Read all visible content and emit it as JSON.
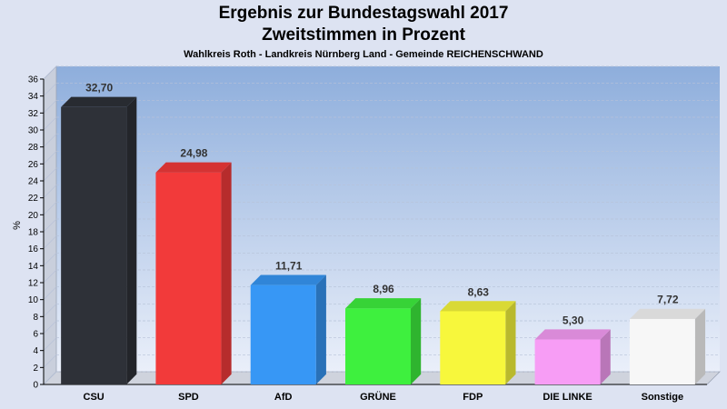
{
  "header": {
    "title": "Ergebnis zur Bundestagswahl 2017",
    "subtitle": "Zweitstimmen in Prozent",
    "caption": "Wahlkreis Roth - Landkreis Nürnberg Land - Gemeinde REICHENSCHWAND"
  },
  "chart_data": {
    "type": "bar",
    "title": "Ergebnis zur Bundestagswahl 2017",
    "subtitle": "Zweitstimmen in Prozent",
    "caption": "Wahlkreis Roth - Landkreis Nürnberg Land - Gemeinde REICHENSCHWAND",
    "xlabel": "",
    "ylabel": "%",
    "ylim": [
      0,
      36
    ],
    "yticks": [
      0,
      2,
      4,
      6,
      8,
      10,
      12,
      14,
      16,
      18,
      20,
      22,
      24,
      26,
      28,
      30,
      32,
      34,
      36
    ],
    "grid": true,
    "categories": [
      "CSU",
      "SPD",
      "AfD",
      "GRÜNE",
      "FDP",
      "DIE LINKE",
      "Sonstige"
    ],
    "values": [
      32.7,
      24.98,
      11.71,
      8.96,
      8.63,
      5.3,
      7.72
    ],
    "value_labels": [
      "32,70",
      "24,98",
      "11,71",
      "8,96",
      "8,63",
      "5,30",
      "7,72"
    ],
    "colors": [
      "#2e3138",
      "#f23a3a",
      "#3797f5",
      "#3ef03e",
      "#f7f73c",
      "#f79df5",
      "#f7f7f7"
    ]
  }
}
